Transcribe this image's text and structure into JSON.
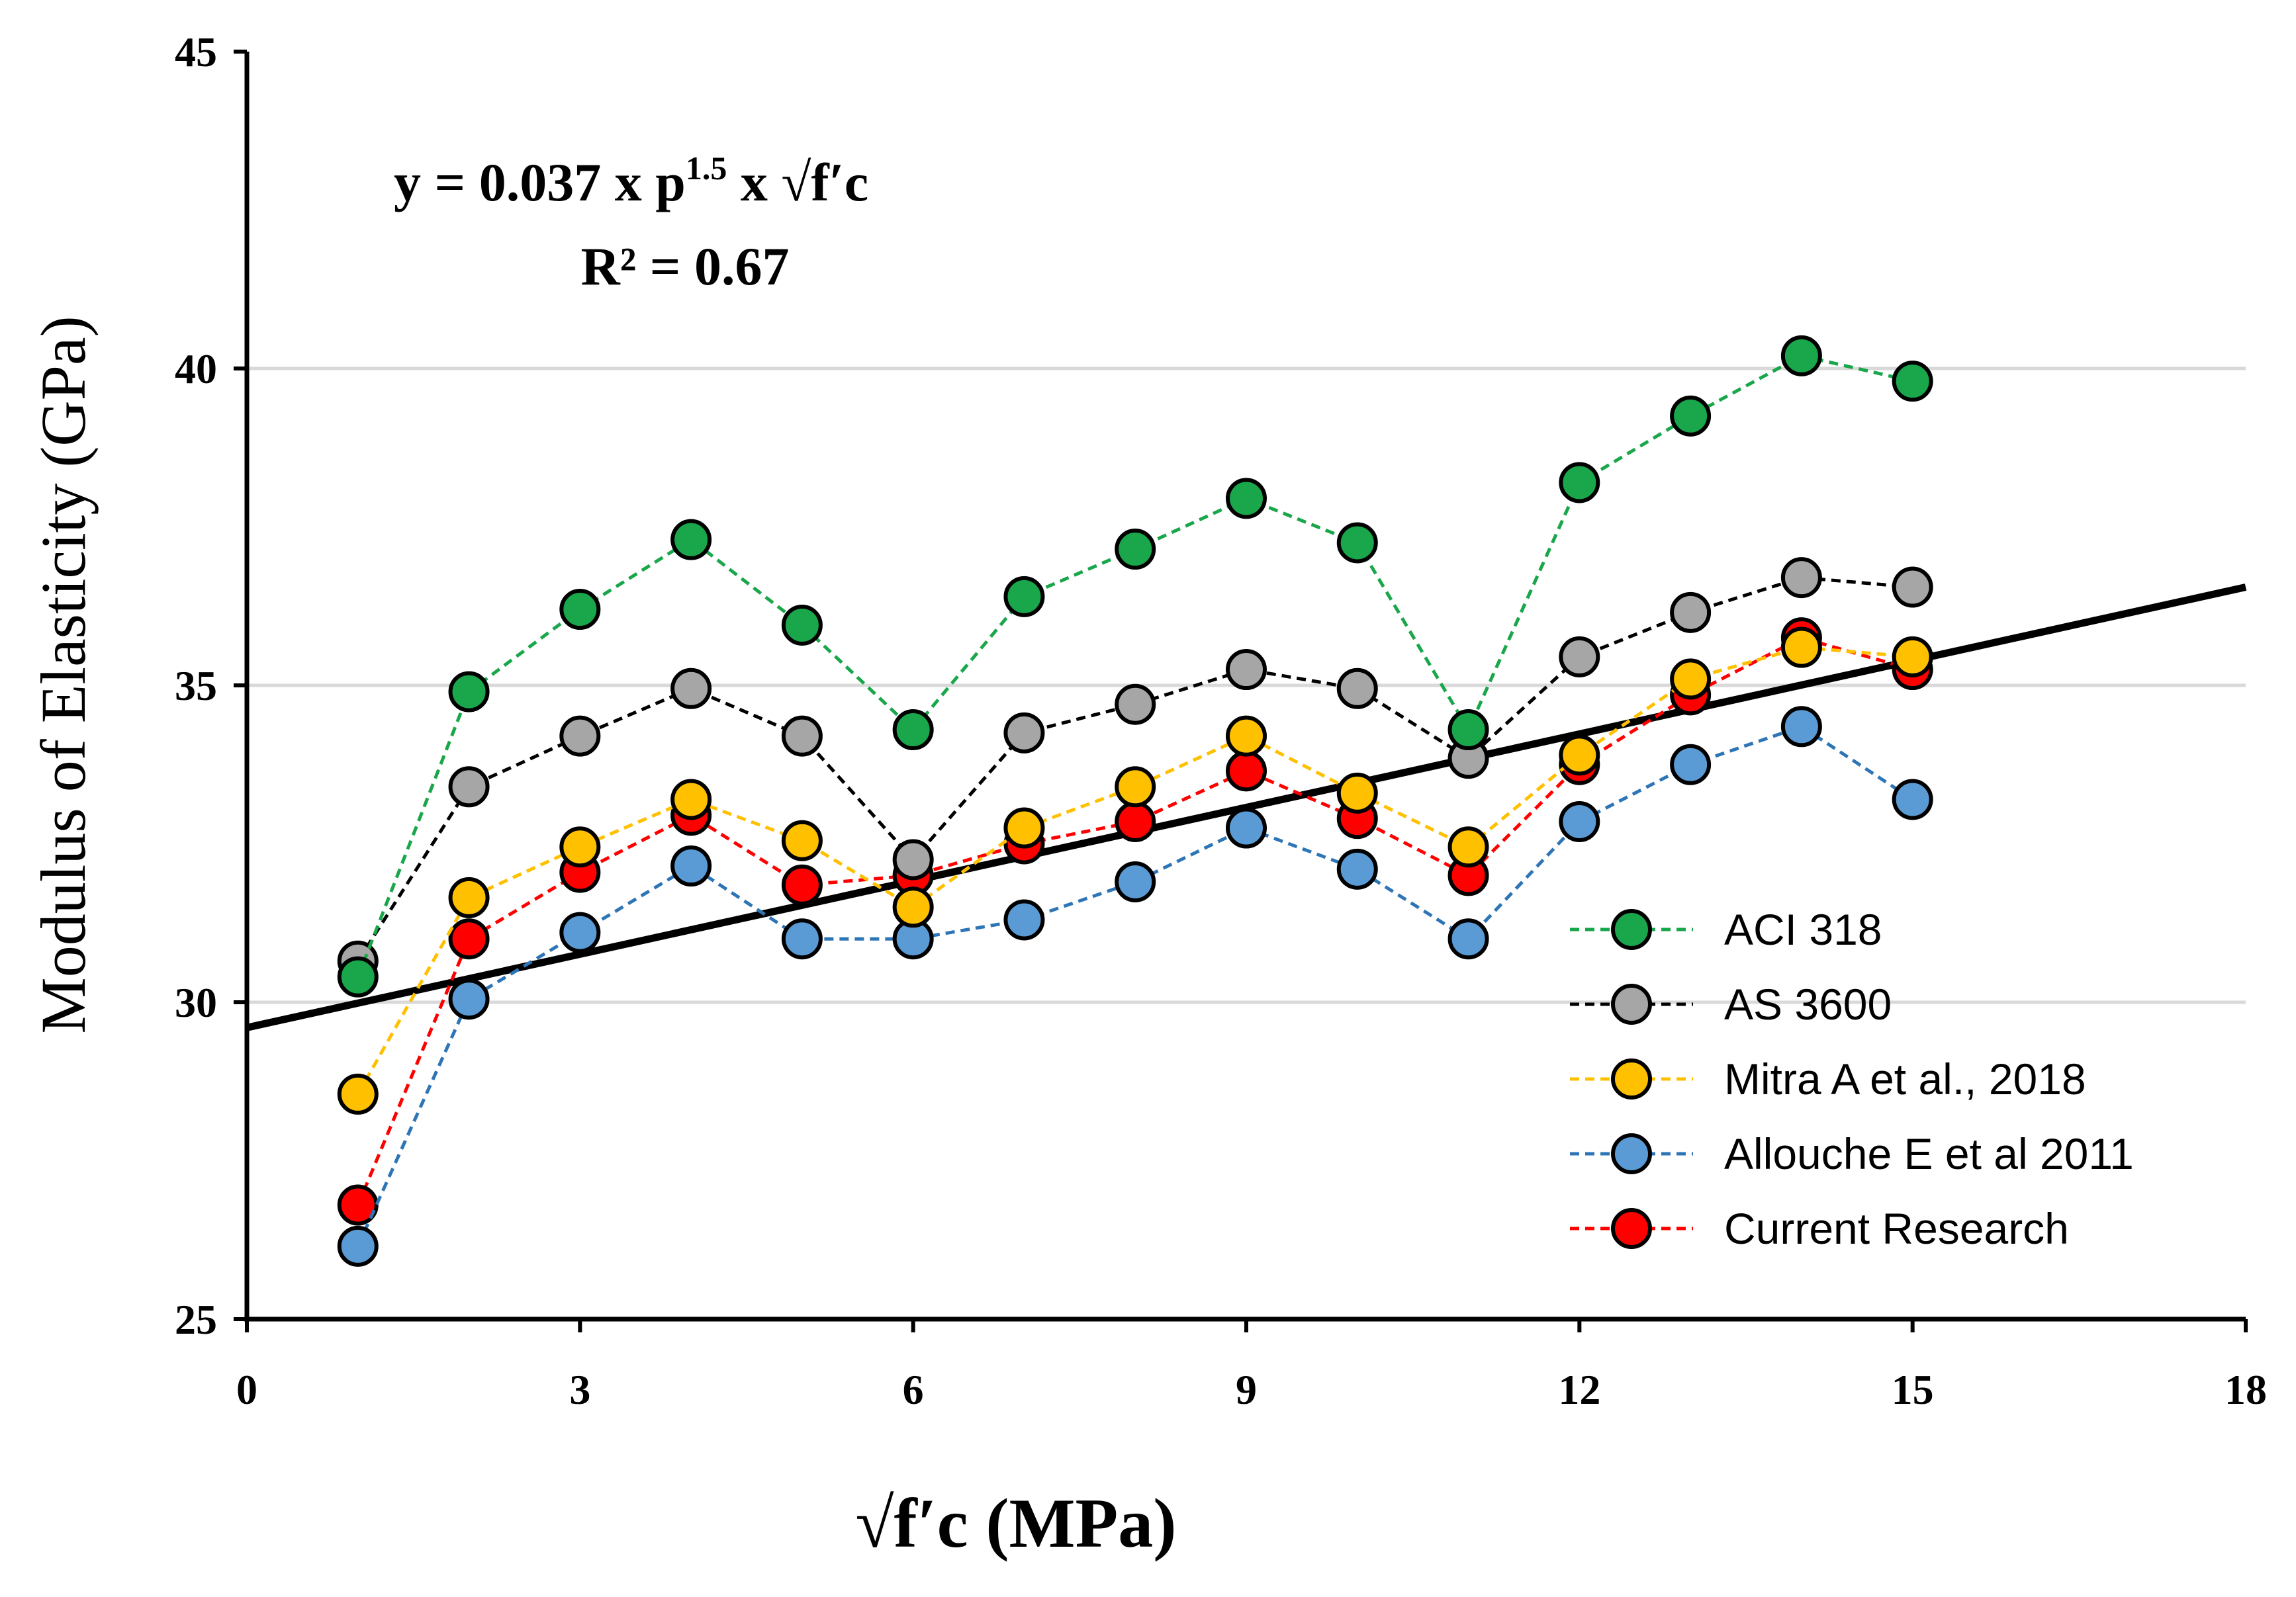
{
  "chart_data": {
    "type": "line",
    "title": "",
    "xlabel": "√f′c (MPa)",
    "ylabel": "Modulus of Elasticity (GPa)",
    "xlim": [
      0,
      18
    ],
    "ylim": [
      25,
      45
    ],
    "x_ticks": [
      0,
      3,
      6,
      9,
      12,
      15,
      18
    ],
    "y_ticks": [
      25,
      30,
      35,
      40,
      45
    ],
    "x_tick_labels": [
      "0",
      "3",
      "6",
      "9",
      "12",
      "15",
      "18"
    ],
    "y_tick_labels": [
      "25",
      "30",
      "35",
      "40",
      "45"
    ],
    "grid": "horizontal",
    "legend_position": "bottom-right",
    "x": [
      1,
      2,
      3,
      4,
      5,
      6,
      7,
      8,
      9,
      10,
      11,
      12,
      13,
      14,
      15
    ],
    "series": [
      {
        "name": "ACI 318",
        "color": "#1aa64a",
        "line_color": "#1aa64a",
        "style": "dashed-marker",
        "values": [
          30.4,
          34.9,
          36.2,
          37.3,
          35.95,
          34.3,
          36.4,
          37.15,
          37.95,
          37.25,
          34.3,
          38.2,
          39.25,
          40.2,
          39.8
        ]
      },
      {
        "name": "AS 3600",
        "color": "#a6a6a6",
        "line_color": "#000000",
        "style": "dashed-marker",
        "values": [
          30.65,
          33.4,
          34.2,
          34.95,
          34.2,
          32.25,
          34.25,
          34.7,
          35.25,
          34.95,
          33.85,
          35.45,
          36.15,
          36.7,
          36.55
        ]
      },
      {
        "name": "Mitra A et al., 2018",
        "color": "#ffc000",
        "line_color": "#ffc000",
        "style": "dashed-marker",
        "values": [
          28.55,
          31.65,
          32.45,
          33.2,
          32.55,
          31.5,
          32.75,
          33.4,
          34.2,
          33.3,
          32.45,
          33.9,
          35.1,
          35.6,
          35.45
        ]
      },
      {
        "name": "Allouche E et al 2011",
        "color": "#5b9bd5",
        "line_color": "#2e75b6",
        "style": "dashed-marker",
        "values": [
          26.15,
          30.05,
          31.1,
          32.15,
          31.0,
          31.0,
          31.3,
          31.9,
          32.75,
          32.1,
          31.0,
          32.85,
          33.75,
          34.35,
          33.2
        ]
      },
      {
        "name": "Current Research",
        "color": "#ff0000",
        "line_color": "#ff0000",
        "style": "dashed-marker",
        "values": [
          26.8,
          31.0,
          32.05,
          32.95,
          31.85,
          32.0,
          32.5,
          32.85,
          33.65,
          32.9,
          32.0,
          33.75,
          34.85,
          35.75,
          35.25
        ]
      }
    ],
    "trendline": {
      "name": "fit",
      "x": [
        0,
        18
      ],
      "y": [
        29.6,
        36.55
      ],
      "color": "#000000"
    },
    "annotations": {
      "equation_main": "y = 0.037 x p",
      "equation_exp": "1.5",
      "equation_tail": " x √f′c",
      "r_squared": "R² = 0.67"
    }
  }
}
